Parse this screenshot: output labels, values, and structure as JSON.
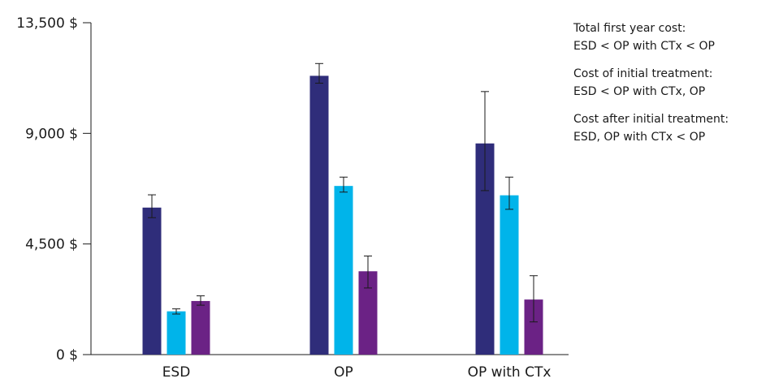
{
  "chart_data": {
    "type": "bar",
    "categories": [
      "ESD",
      "OP",
      "OP with CTx"
    ],
    "series": [
      {
        "color": "#2f2d7a",
        "values": [
          5980,
          11340,
          8590
        ],
        "error_low": [
          5570,
          11040,
          6670
        ],
        "error_high": [
          6500,
          11840,
          10700
        ]
      },
      {
        "color": "#00b4ea",
        "values": [
          1760,
          6860,
          6480
        ],
        "error_low": [
          1650,
          6610,
          5910
        ],
        "error_high": [
          1860,
          7220,
          7220
        ]
      },
      {
        "color": "#6b2285",
        "values": [
          2180,
          3390,
          2240
        ],
        "error_low": [
          2010,
          2710,
          1330
        ],
        "error_high": [
          2390,
          4010,
          3210
        ]
      }
    ],
    "ylim": [
      0,
      13500
    ],
    "yticks": [
      0,
      4500,
      9000,
      13500
    ],
    "ytick_labels": [
      "0 $",
      "4,500 $",
      "9,000 $",
      "13,500 $"
    ],
    "legend": "none",
    "grid": false,
    "title": "",
    "xlabel": "",
    "ylabel": ""
  },
  "annotations": [
    {
      "line1": "Total first year cost:",
      "line2": "ESD < OP with CTx < OP"
    },
    {
      "line1": "Cost of initial treatment:",
      "line2": "ESD < OP with CTx, OP"
    },
    {
      "line1": "Cost after initial treatment:",
      "line2": "ESD, OP with CTx < OP"
    }
  ]
}
